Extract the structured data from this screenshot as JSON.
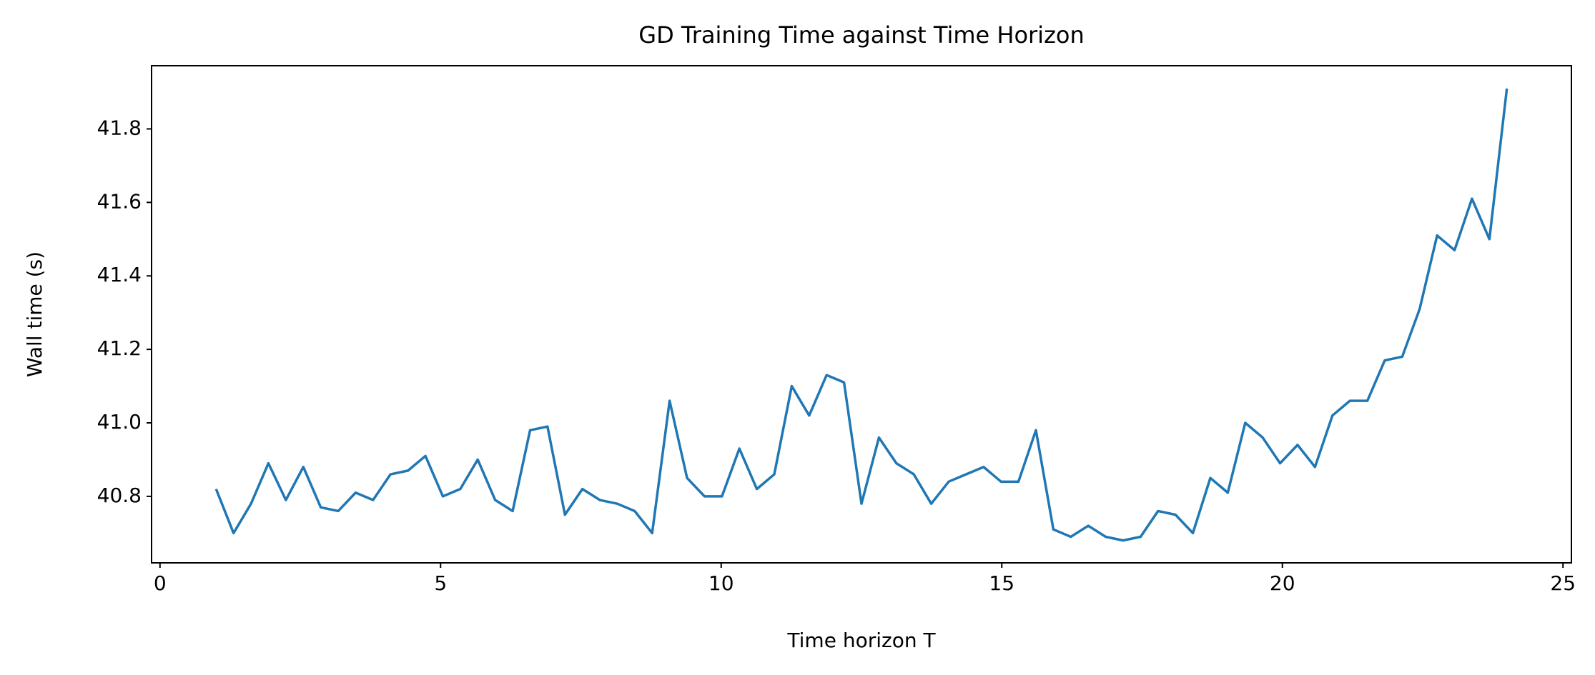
{
  "chart_data": {
    "type": "line",
    "title": "GD Training Time against Time Horizon",
    "xlabel": "Time horizon T",
    "ylabel": "Wall time (s)",
    "x": [
      1,
      1.311,
      1.622,
      1.932,
      2.243,
      2.554,
      2.865,
      3.176,
      3.486,
      3.797,
      4.108,
      4.419,
      4.73,
      5.041,
      5.351,
      5.662,
      5.973,
      6.284,
      6.595,
      6.905,
      7.216,
      7.527,
      7.838,
      8.149,
      8.459,
      8.77,
      9.081,
      9.392,
      9.703,
      10.014,
      10.324,
      10.635,
      10.946,
      11.257,
      11.568,
      11.878,
      12.189,
      12.5,
      12.811,
      13.122,
      13.432,
      13.743,
      14.054,
      14.365,
      14.676,
      14.986,
      15.297,
      15.608,
      15.919,
      16.23,
      16.541,
      16.851,
      17.162,
      17.473,
      17.784,
      18.095,
      18.405,
      18.716,
      19.027,
      19.338,
      19.649,
      19.959,
      20.27,
      20.581,
      20.892,
      21.203,
      21.514,
      21.824,
      22.135,
      22.446,
      22.757,
      23.068,
      23.378,
      23.689,
      24
    ],
    "series": [
      {
        "color": "#1f77b4",
        "values": [
          40.82,
          40.7,
          40.78,
          40.89,
          40.79,
          40.88,
          40.77,
          40.76,
          40.81,
          40.79,
          40.86,
          40.87,
          40.91,
          40.8,
          40.82,
          40.9,
          40.79,
          40.76,
          40.98,
          40.99,
          40.75,
          40.82,
          40.79,
          40.78,
          40.76,
          40.7,
          41.06,
          40.85,
          40.8,
          40.8,
          40.93,
          40.82,
          40.86,
          41.1,
          41.02,
          41.13,
          41.11,
          40.78,
          40.96,
          40.89,
          40.86,
          40.78,
          40.84,
          40.86,
          40.88,
          40.84,
          40.84,
          40.98,
          40.71,
          40.69,
          40.72,
          40.69,
          40.68,
          40.69,
          40.76,
          40.75,
          40.7,
          40.85,
          40.81,
          41.0,
          40.96,
          40.89,
          40.94,
          40.88,
          41.02,
          41.06,
          41.06,
          41.17,
          41.18,
          41.31,
          41.51,
          41.47,
          41.61,
          41.5,
          41.91
        ]
      }
    ],
    "xlim": [
      -0.15,
      25.15
    ],
    "xticks": [
      0,
      5,
      10,
      15,
      20,
      25
    ],
    "ylim": [
      40.619,
      41.972
    ],
    "yticks": [
      40.8,
      {
        "value": 41,
        "label": "41.0"
      },
      41.2,
      41.4,
      41.6,
      41.8
    ],
    "grid": false
  }
}
